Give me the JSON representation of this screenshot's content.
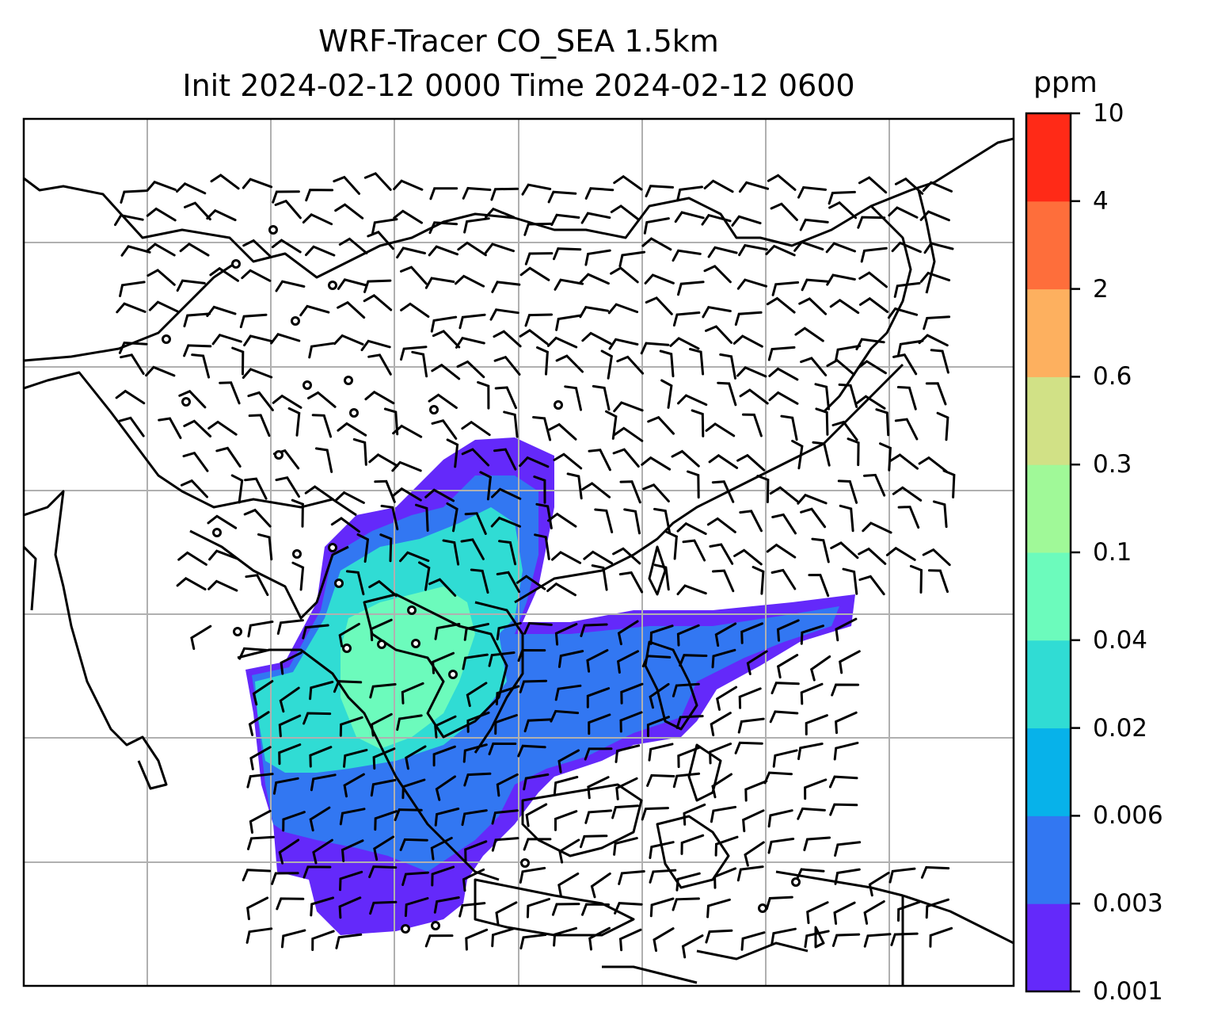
{
  "figure": {
    "title_line1": "WRF-Tracer CO_SEA 1.5km",
    "title_line2": "Init 2024-02-12 0000 Time 2024-02-12 0600"
  },
  "colorbar": {
    "units": "ppm",
    "levels": [
      "0.001",
      "0.003",
      "0.006",
      "0.02",
      "0.04",
      "0.1",
      "0.3",
      "0.6",
      "2",
      "4",
      "10"
    ],
    "colors": [
      "#6429fa",
      "#3277f2",
      "#07b2ea",
      "#30dcd4",
      "#6cfbbc",
      "#a0f998",
      "#d1e186",
      "#fdb05f",
      "#fe6e3b",
      "#ff2a17"
    ]
  },
  "map": {
    "field": "CO_SEA tracer concentration",
    "level": "1.5km",
    "gridlines": true,
    "wind_barbs": true,
    "calm_circles": true,
    "coastlines": true
  }
}
